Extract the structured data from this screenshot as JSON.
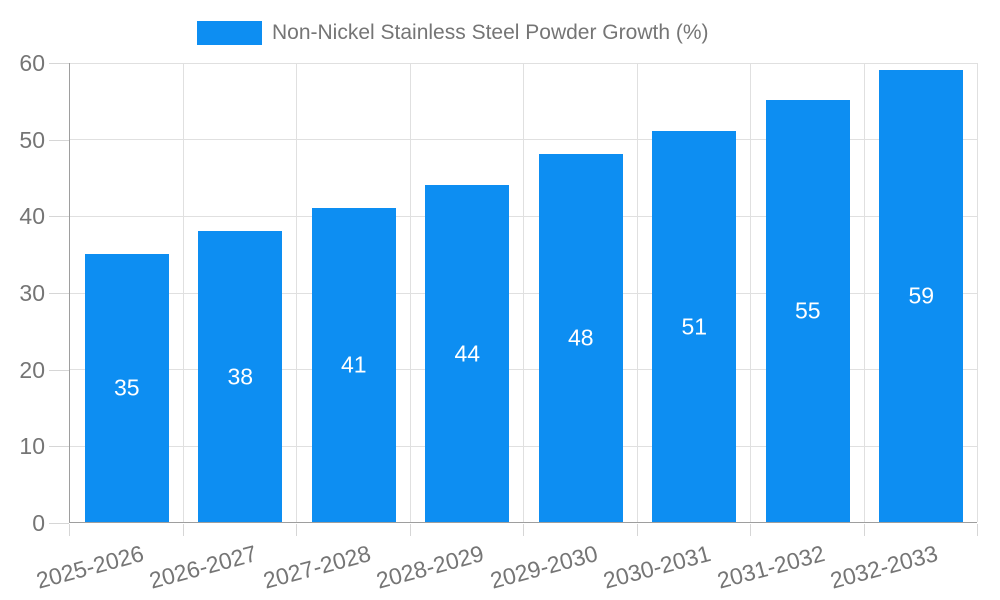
{
  "chart_data": {
    "type": "bar",
    "title": "",
    "legend_position": "top",
    "categories": [
      "2025-2026",
      "2026-2027",
      "2027-2028",
      "2028-2029",
      "2029-2030",
      "2030-2031",
      "2031-2032",
      "2032-2033"
    ],
    "series": [
      {
        "name": "Non-Nickel Stainless Steel Powder Growth (%)",
        "values": [
          35,
          38,
          41,
          44,
          48,
          51,
          55,
          59
        ]
      }
    ],
    "value_labels_position": "inside-center",
    "xlabel": "",
    "ylabel": "",
    "ylim": [
      0,
      60
    ],
    "yticks": [
      0,
      10,
      20,
      30,
      40,
      50,
      60
    ],
    "x_tick_rotation_deg": -15,
    "grid": true
  },
  "style": {
    "bar_color": "#0d8ef2",
    "value_label_color": "#ffffff",
    "axis_color": "#9e9e9e",
    "grid_color": "#e0e0e0",
    "tick_color": "#d6d6d6",
    "text_color": "#757575",
    "background_color": "#ffffff"
  }
}
